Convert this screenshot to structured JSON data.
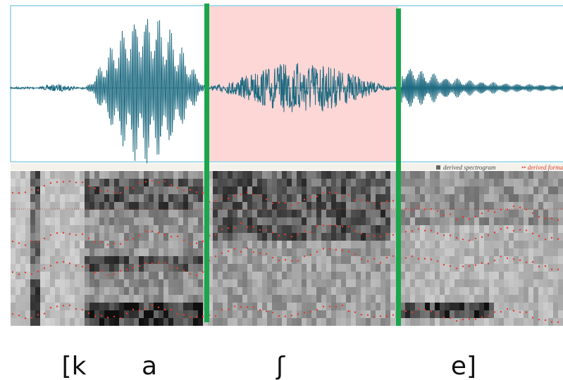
{
  "legend": {
    "spectrogram": "derived spectrogram",
    "formants": "derived formants"
  },
  "segments": [
    "[k",
    "a",
    "ʃ",
    "e]"
  ]
}
